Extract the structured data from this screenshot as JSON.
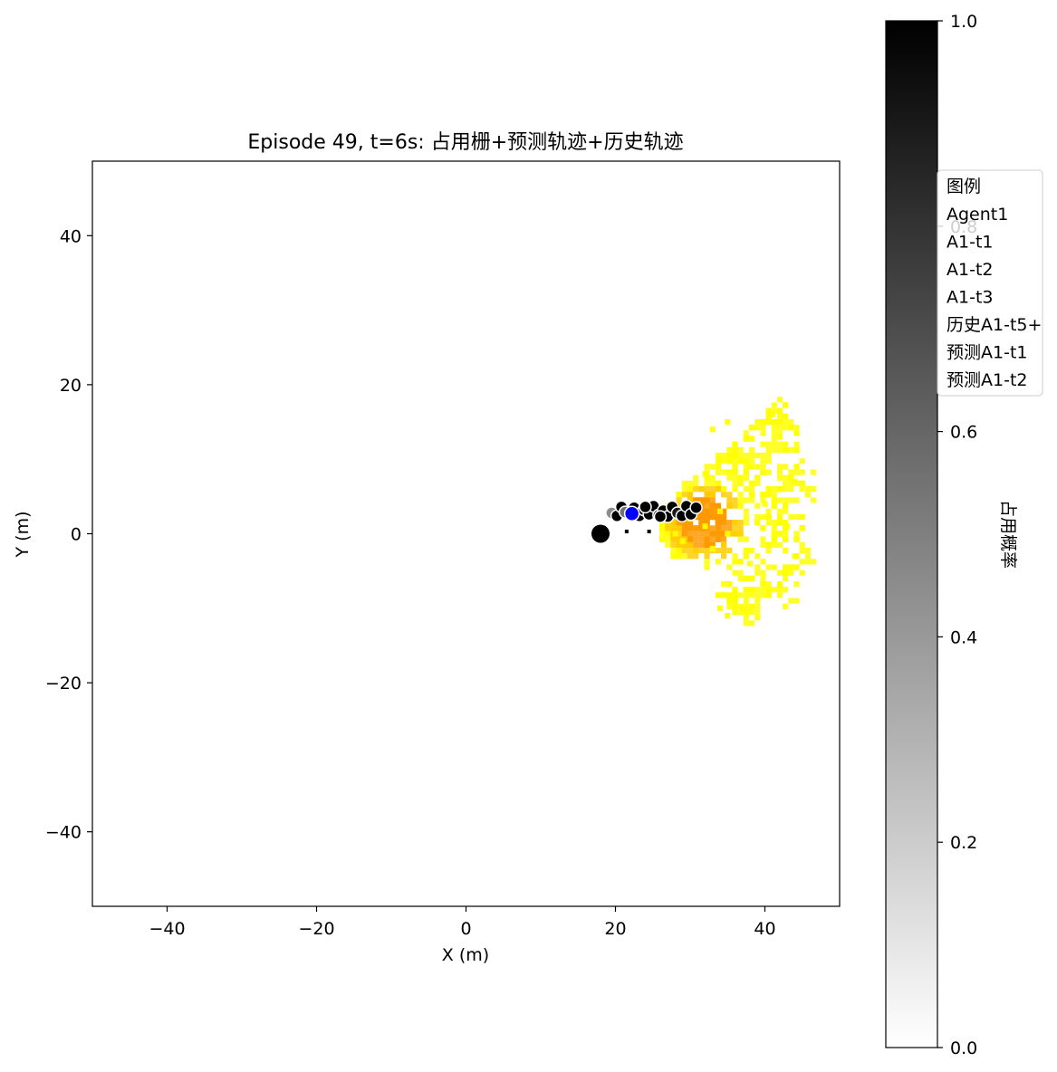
{
  "chart_data": {
    "type": "scatter",
    "title": "Episode 49, t=6s: 占用栅+预测轨迹+历史轨迹",
    "xlabel": "X (m)",
    "ylabel": "Y (m)",
    "xlim": [
      -50,
      50
    ],
    "ylim": [
      -50,
      50
    ],
    "xticks": [
      -40,
      -20,
      0,
      20,
      40
    ],
    "yticks": [
      -40,
      -20,
      0,
      20,
      40
    ],
    "xtick_labels": [
      "−40",
      "−20",
      "0",
      "20",
      "40"
    ],
    "ytick_labels": [
      "−40",
      "−20",
      "0",
      "20",
      "40"
    ],
    "grid": false,
    "colorbar": {
      "label": "占用概率",
      "range": [
        0,
        1
      ],
      "ticks": [
        0.0,
        0.2,
        0.4,
        0.6,
        0.8,
        1.0
      ],
      "tick_labels": [
        "0.0",
        "0.2",
        "0.4",
        "0.6",
        "0.8",
        "1.0"
      ],
      "colormap": "Greys"
    },
    "legend": {
      "placement": "right",
      "title": "图例",
      "entries": [
        "Agent1",
        "A1-t1",
        "A1-t2",
        "A1-t3",
        "历史A1-t5+",
        "预测A1-t1",
        "预测A1-t2"
      ]
    },
    "occupancy_region": {
      "colors": [
        "#ffff00",
        "#ffcc00",
        "#ff9900",
        "#ff7a00"
      ],
      "cells": [
        [
          27,
          2
        ],
        [
          28,
          0
        ],
        [
          29,
          -1
        ],
        [
          30,
          2
        ],
        [
          31,
          4
        ],
        [
          32,
          1
        ],
        [
          33,
          -2
        ],
        [
          34,
          3
        ],
        [
          35,
          0
        ],
        [
          36,
          6
        ],
        [
          30,
          6
        ],
        [
          32,
          8
        ],
        [
          34,
          10
        ],
        [
          36,
          12
        ],
        [
          38,
          9
        ],
        [
          40,
          4
        ],
        [
          42,
          0
        ],
        [
          38,
          -4
        ],
        [
          36,
          -8
        ],
        [
          34,
          -10
        ],
        [
          33,
          14
        ],
        [
          35,
          15
        ],
        [
          41,
          16
        ],
        [
          42,
          13
        ],
        [
          44,
          7
        ],
        [
          43,
          1
        ],
        [
          44,
          -3
        ],
        [
          42,
          -7
        ],
        [
          37,
          -10
        ],
        [
          35,
          -11
        ]
      ]
    },
    "ego_vehicle": {
      "x": 18,
      "y": 0,
      "color": "#000000"
    },
    "agent1_position": {
      "x": 22.2,
      "y": 2.7,
      "color": "#0000ff"
    },
    "trajectory_points": [
      {
        "x": 19.5,
        "y": 2.8,
        "v": 0.45
      },
      {
        "x": 20.2,
        "y": 2.4,
        "v": 1.0
      },
      {
        "x": 20.8,
        "y": 3.6,
        "v": 1.0
      },
      {
        "x": 21.3,
        "y": 2.9,
        "v": 0.55
      },
      {
        "x": 22.5,
        "y": 3.5,
        "v": 1.0
      },
      {
        "x": 23.2,
        "y": 2.4,
        "v": 1.0
      },
      {
        "x": 23.8,
        "y": 3.2,
        "v": 0.9
      },
      {
        "x": 24.5,
        "y": 2.6,
        "v": 1.0
      },
      {
        "x": 25.1,
        "y": 3.7,
        "v": 1.0
      },
      {
        "x": 25.8,
        "y": 2.5,
        "v": 0.85
      },
      {
        "x": 26.4,
        "y": 3.1,
        "v": 1.0
      },
      {
        "x": 27.0,
        "y": 2.3,
        "v": 1.0
      },
      {
        "x": 27.6,
        "y": 3.6,
        "v": 1.0
      },
      {
        "x": 28.3,
        "y": 2.8,
        "v": 0.9
      },
      {
        "x": 28.9,
        "y": 2.4,
        "v": 1.0
      },
      {
        "x": 29.5,
        "y": 3.7,
        "v": 1.0
      },
      {
        "x": 30.1,
        "y": 2.6,
        "v": 1.0
      },
      {
        "x": 30.8,
        "y": 3.5,
        "v": 1.0
      },
      {
        "x": 26.0,
        "y": 2.3,
        "v": 1.0
      },
      {
        "x": 24.0,
        "y": 3.6,
        "v": 1.0
      }
    ],
    "small_markers": [
      {
        "x": 21.5,
        "y": 0.3
      },
      {
        "x": 24.5,
        "y": 0.3
      }
    ]
  }
}
